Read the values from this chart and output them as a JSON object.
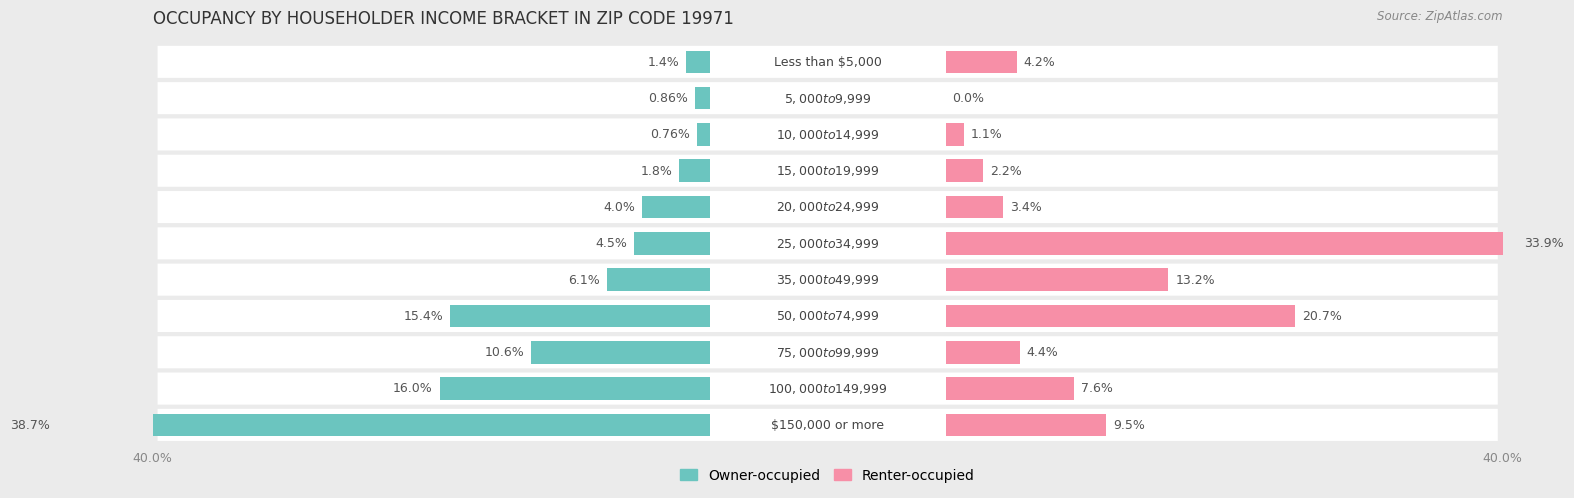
{
  "title": "OCCUPANCY BY HOUSEHOLDER INCOME BRACKET IN ZIP CODE 19971",
  "source": "Source: ZipAtlas.com",
  "categories": [
    "Less than $5,000",
    "$5,000 to $9,999",
    "$10,000 to $14,999",
    "$15,000 to $19,999",
    "$20,000 to $24,999",
    "$25,000 to $34,999",
    "$35,000 to $49,999",
    "$50,000 to $74,999",
    "$75,000 to $99,999",
    "$100,000 to $149,999",
    "$150,000 or more"
  ],
  "owner_values": [
    1.4,
    0.86,
    0.76,
    1.8,
    4.0,
    4.5,
    6.1,
    15.4,
    10.6,
    16.0,
    38.7
  ],
  "renter_values": [
    4.2,
    0.0,
    1.1,
    2.2,
    3.4,
    33.9,
    13.2,
    20.7,
    4.4,
    7.6,
    9.5
  ],
  "owner_color": "#6bc5bf",
  "renter_color": "#f78fa7",
  "axis_max": 40.0,
  "bg_color": "#ebebeb",
  "row_bg_color": "#ffffff",
  "row_alt_color": "#f5f5f5",
  "title_fontsize": 12,
  "label_fontsize": 9,
  "tick_fontsize": 9,
  "legend_fontsize": 10,
  "category_fontsize": 9
}
